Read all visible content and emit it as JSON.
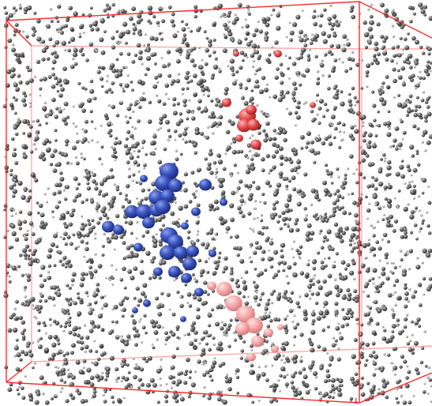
{
  "scene": {
    "description_hidden": "",
    "background_color": "#ffffff",
    "box_color": "#ff2a2a",
    "particle_color": "#555555",
    "particle_highlight_color": "#b8b8b8",
    "blue_cluster_color": "#2f48a8",
    "blue_cluster_highlight_color": "#7a8de0",
    "red_cluster_color": "#e04848",
    "red_cluster_highlight_color": "#ff9a9a",
    "pink_cluster_color": "#f4a0a0",
    "pink_cluster_highlight_color": "#ffd6d6",
    "particle_count": 3400,
    "random_seed": 7
  }
}
